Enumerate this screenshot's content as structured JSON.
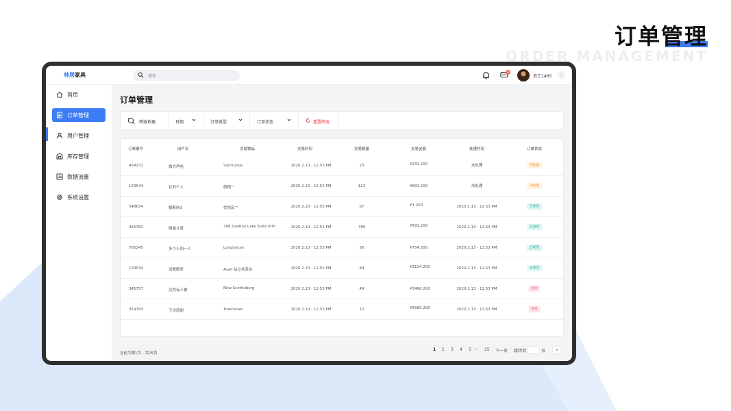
{
  "slide": {
    "title": "订单管理",
    "subtitle": "ORDER MANAGEMENT",
    "accent": "#3c7cf5",
    "bg_shape_color": "#dce9fb"
  },
  "app": {
    "brand_part1": "林居",
    "brand_part2": "家具",
    "search_placeholder": "搜索",
    "message_count": "12",
    "user_name": "员工1465"
  },
  "sidebar": {
    "items": [
      {
        "label": "首页",
        "icon": "home-icon"
      },
      {
        "label": "订单管理",
        "icon": "order-icon",
        "active": true
      },
      {
        "label": "用户管理",
        "icon": "user-icon"
      },
      {
        "label": "库存管理",
        "icon": "inventory-icon"
      },
      {
        "label": "数据流量",
        "icon": "data-icon"
      },
      {
        "label": "系统设置",
        "icon": "settings-icon"
      }
    ]
  },
  "page": {
    "title": "订单管理"
  },
  "filters": {
    "basis": "筛选依据",
    "date": "日期",
    "type": "订单类型",
    "status": "订单状态",
    "reset": "重置筛选"
  },
  "table": {
    "headers": [
      "订单编号",
      "用户名",
      "交易物品",
      "交易时间",
      "交易数量",
      "交易金额",
      "处理时间",
      "订单状态"
    ],
    "rows": [
      [
        "454231",
        "微大声哈",
        "Surrounds",
        "2020.2.13 - 12.53 PM",
        "23",
        "¥231.200",
        "未处理",
        "待处理"
      ],
      [
        "123544",
        "甘的个人",
        "蔚翔™",
        "2020.2.13 - 12.53 PM",
        "123",
        "¥891.200",
        "未处理",
        "待处理"
      ],
      [
        "548634",
        "微斯网3",
        "优悦高™",
        "2020.2.13 - 12.53 PM",
        "67",
        "¥1.200",
        "2020.2.13 - 12.53 PM",
        "已发货"
      ],
      [
        "456782",
        "微露斗雪",
        "768 Destiny Lake Suite 600",
        "2020.2.13 - 12.53 PM",
        "789",
        "¥591.200",
        "2020.2.13 - 12.53 PM",
        "已发货"
      ],
      [
        "785245",
        "多个人同一人",
        "Longhouse",
        "2020.2.13 - 12.53 PM",
        "56",
        "¥754.200",
        "2020.2.13 - 12.53 PM",
        "已发货"
      ],
      [
        "123534",
        "送餐服务",
        "Avail 站立共享台",
        "2020.2.13 - 12.53 PM",
        "84",
        "¥2134.200",
        "2020.2.13 - 12.53 PM",
        "已发货"
      ],
      [
        "345757",
        "突然有人要",
        "New Scottieberg",
        "2020.2.13 - 12.53 PM",
        "49",
        "¥3466.200",
        "2020.2.13 - 12.53 PM",
        "退货"
      ],
      [
        "354783",
        "下次感谢",
        "Treehouse",
        "2020.2.13 - 12.53 PM",
        "10",
        "¥5685.200",
        "2020.2.13 - 12.53 PM",
        "退货"
      ]
    ]
  },
  "footer": {
    "info": "当前为第1页，共25页",
    "pages": [
      "1",
      "2",
      "3",
      "4",
      "5",
      "·····",
      "25"
    ],
    "next": "下一页",
    "jump": "跳转到",
    "page_unit": "页",
    "next_icon": "›"
  }
}
